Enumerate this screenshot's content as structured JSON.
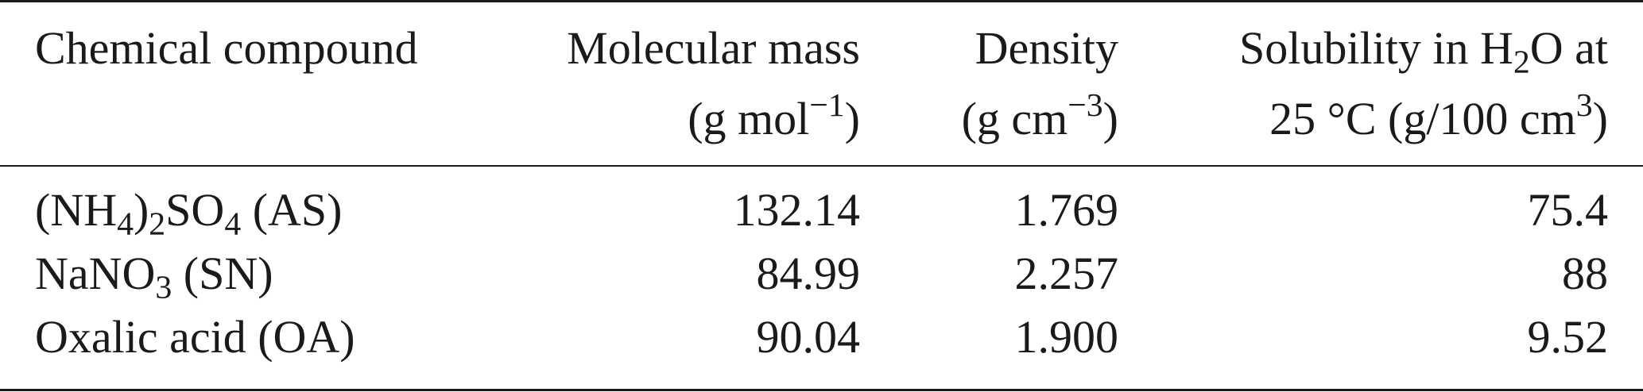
{
  "table": {
    "headers": {
      "compound": "Chemical compound",
      "molecular_mass": {
        "line1": "Molecular mass",
        "unit_prefix": "(g mol",
        "unit_exp": "−1",
        "unit_suffix": ")"
      },
      "density": {
        "line1": "Density",
        "unit_prefix": "(g cm",
        "unit_exp": "−3",
        "unit_suffix": ")"
      },
      "solubility": {
        "line1_prefix": "Solubility in H",
        "line1_sub": "2",
        "line1_suffix": "O at",
        "line2_prefix": "25 °C (g/100 cm",
        "line2_exp": "3",
        "line2_suffix": ")"
      }
    },
    "rows": [
      {
        "compound_parts": [
          "(NH",
          "4",
          ")",
          "2",
          "SO",
          "4",
          " (AS)"
        ],
        "molecular_mass": "132.14",
        "density": "1.769",
        "solubility": "75.4"
      },
      {
        "compound_parts": [
          "NaNO",
          "3",
          " (SN)"
        ],
        "molecular_mass": "84.99",
        "density": "2.257",
        "solubility": "88"
      },
      {
        "compound_parts": [
          "Oxalic acid (OA)"
        ],
        "molecular_mass": "90.04",
        "density": "1.900",
        "solubility": "9.52"
      }
    ]
  }
}
